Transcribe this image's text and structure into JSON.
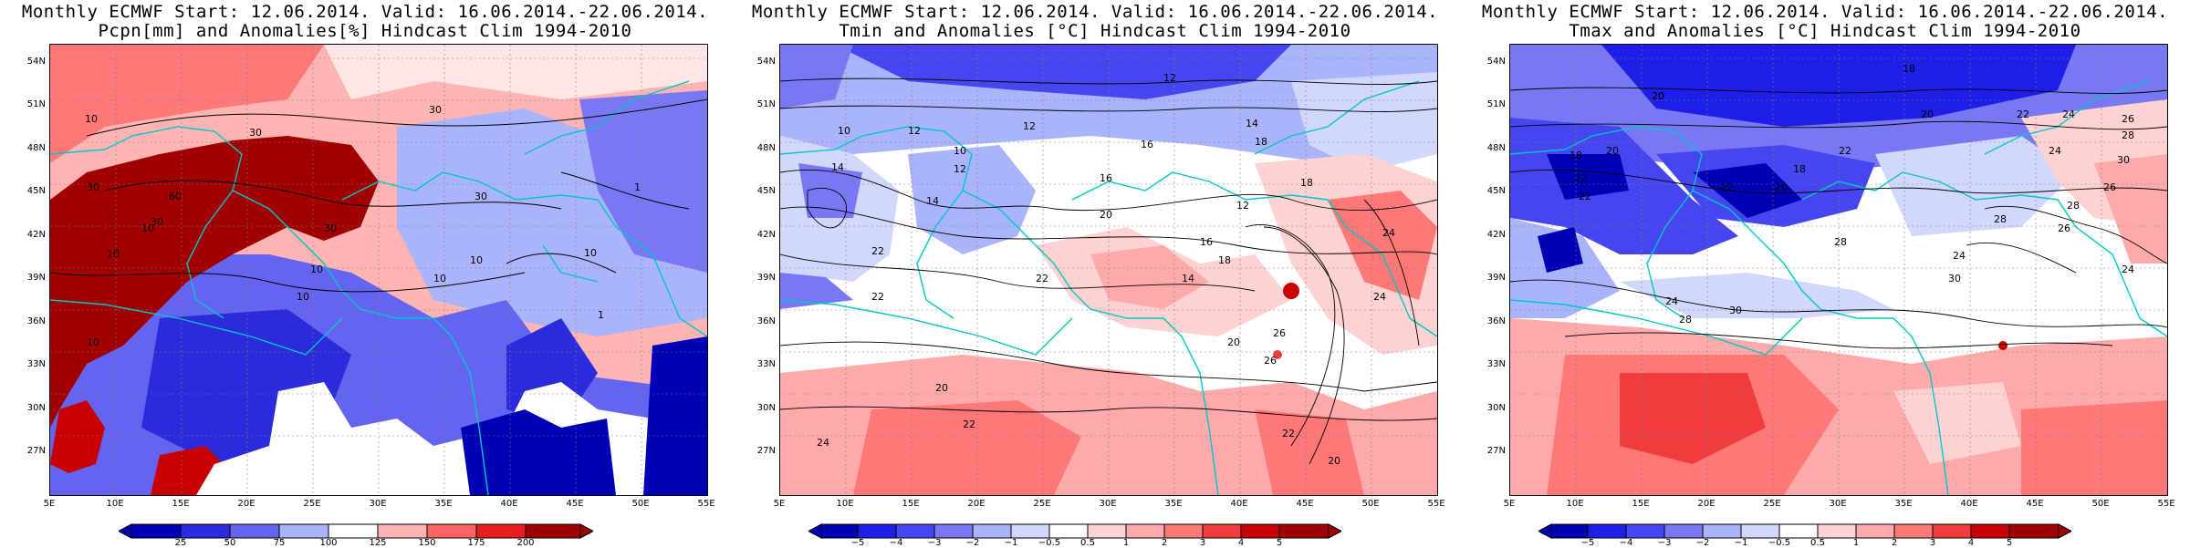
{
  "panels": [
    {
      "title_line1": "Monthly ECMWF Start: 12.06.2014. Valid: 16.06.2014.-22.06.2014.",
      "title_line2": "Pcpn[mm] and Anomalies[%] Hindcast Clim 1994-2010",
      "variable": "precipitation",
      "colorbar_ticks": [
        "25",
        "50",
        "75",
        "100",
        "125",
        "150",
        "175",
        "200"
      ],
      "colorbar_colors": [
        "#0000b4",
        "#2b2bdc",
        "#6464f0",
        "#aab4fa",
        "#ffffff",
        "#ffb4b4",
        "#ff6464",
        "#e61e1e",
        "#a00000"
      ],
      "contour_labels": [
        "10",
        "10",
        "30",
        "30",
        "60",
        "30",
        "10",
        "30",
        "10",
        "10",
        "10",
        "30",
        "10",
        "10",
        "1",
        "10",
        "30",
        "1"
      ]
    },
    {
      "title_line1": "Monthly ECMWF Start: 12.06.2014. Valid: 16.06.2014.-22.06.2014.",
      "title_line2": "Tmin and Anomalies [°C] Hindcast Clim 1994-2010",
      "variable": "tmin",
      "colorbar_ticks": [
        "−5",
        "−4",
        "−3",
        "−2",
        "−1",
        "−0.5",
        "0.5",
        "1",
        "2",
        "3",
        "4",
        "5"
      ],
      "colorbar_colors": [
        "#0000b4",
        "#1e1ee6",
        "#4646f0",
        "#7878f5",
        "#aab4fa",
        "#d2d7fc",
        "#ffffff",
        "#ffd2d2",
        "#ffaaaa",
        "#ff7878",
        "#f03c3c",
        "#c80000",
        "#a00000"
      ],
      "contour_labels": [
        "12",
        "12",
        "14",
        "10",
        "12",
        "16",
        "10",
        "14",
        "18",
        "12",
        "14",
        "16",
        "20",
        "12",
        "18",
        "22",
        "22",
        "24",
        "20",
        "22",
        "26",
        "20",
        "22",
        "24",
        "14",
        "16",
        "18",
        "26",
        "24",
        "20",
        "22"
      ]
    },
    {
      "title_line1": "Monthly ECMWF Start: 12.06.2014. Valid: 16.06.2014.-22.06.2014.",
      "title_line2": "Tmax and Anomalies [°C] Hindcast Clim 1994-2010",
      "variable": "tmax",
      "colorbar_ticks": [
        "−5",
        "−4",
        "−3",
        "−2",
        "−1",
        "−0.5",
        "0.5",
        "1",
        "2",
        "3",
        "4",
        "5"
      ],
      "colorbar_colors": [
        "#0000b4",
        "#1e1ee6",
        "#4646f0",
        "#7878f5",
        "#aab4fa",
        "#d2d7fc",
        "#ffffff",
        "#ffd2d2",
        "#ffaaaa",
        "#ff7878",
        "#f03c3c",
        "#c80000",
        "#a00000"
      ],
      "contour_labels": [
        "18",
        "20",
        "20",
        "22",
        "24",
        "26",
        "28",
        "18",
        "20",
        "22",
        "22",
        "20",
        "22",
        "18",
        "24",
        "26",
        "28",
        "30",
        "22",
        "28",
        "24",
        "30",
        "24",
        "24",
        "28",
        "26",
        "30",
        "28"
      ]
    }
  ],
  "lat_labels": [
    "54N",
    "51N",
    "48N",
    "45N",
    "42N",
    "39N",
    "36N",
    "33N",
    "30N",
    "27N"
  ],
  "lon_labels": [
    "5E",
    "10E",
    "15E",
    "20E",
    "25E",
    "30E",
    "35E",
    "40E",
    "45E",
    "50E",
    "55E"
  ],
  "colors": {
    "coastline": "#00c8c8",
    "contour": "#000000",
    "gridline": "#808080"
  }
}
